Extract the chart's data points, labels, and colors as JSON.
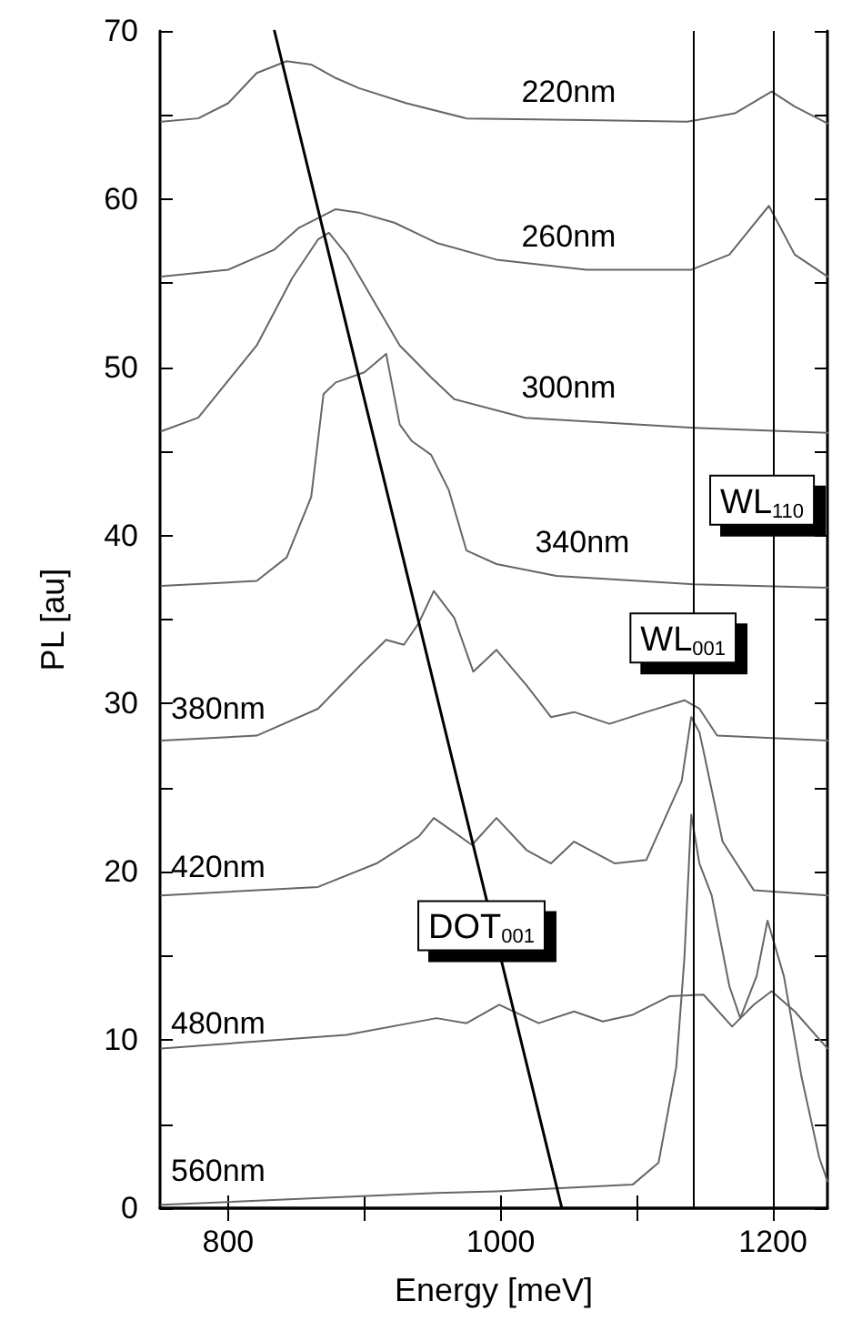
{
  "chart_data": {
    "type": "line",
    "xlabel": "Energy [meV]",
    "ylabel": "PL [au]",
    "xlim": [
      750,
      1240
    ],
    "xticks": [
      800,
      {
        "value": 900,
        "label": null
      },
      1000,
      {
        "value": 1100,
        "label": null
      },
      1200
    ],
    "ylim": [
      0,
      70
    ],
    "yticks": [
      0,
      {
        "value": 5,
        "label": null
      },
      10,
      {
        "value": 15,
        "label": null
      },
      20,
      {
        "value": 25,
        "label": null
      },
      30,
      {
        "value": 35,
        "label": null
      },
      40,
      {
        "value": 45,
        "label": null
      },
      50,
      {
        "value": 55,
        "label": null
      },
      60,
      {
        "value": 65,
        "label": null
      },
      70
    ],
    "grid": false,
    "legend": false,
    "marker": "none",
    "line_style": "solid",
    "series": [
      {
        "name": "220nm",
        "color": "#666666",
        "x": [
          751,
          778,
          800,
          821,
          843,
          861,
          879,
          896,
          931,
          975,
          1063,
          1137,
          1172,
          1199,
          1216,
          1240
        ],
        "values": [
          64.6,
          64.8,
          65.7,
          67.5,
          68.2,
          68.0,
          67.2,
          66.6,
          65.7,
          64.8,
          64.7,
          64.6,
          65.1,
          66.4,
          65.5,
          64.5
        ]
      },
      {
        "name": "260nm",
        "color": "#666666",
        "x": [
          751,
          800,
          834,
          852,
          879,
          896,
          922,
          953,
          997,
          1063,
          1140,
          1168,
          1197,
          1216,
          1240
        ],
        "values": [
          55.4,
          55.8,
          57.0,
          58.3,
          59.4,
          59.2,
          58.6,
          57.4,
          56.4,
          55.8,
          55.8,
          56.7,
          59.6,
          56.7,
          55.4
        ]
      },
      {
        "name": "300nm",
        "color": "#666666",
        "x": [
          751,
          778,
          821,
          847,
          866,
          874,
          887,
          905,
          926,
          949,
          966,
          1018,
          1142,
          1240
        ],
        "values": [
          46.2,
          47.0,
          51.3,
          55.3,
          57.6,
          58.0,
          56.7,
          54.2,
          51.3,
          49.4,
          48.1,
          47.0,
          46.4,
          46.1
        ]
      },
      {
        "name": "340nm",
        "color": "#666666",
        "x": [
          751,
          821,
          843,
          861,
          870,
          879,
          900,
          916,
          926,
          935,
          949,
          962,
          975,
          997,
          1041,
          1142,
          1240
        ],
        "values": [
          37.0,
          37.3,
          38.7,
          42.3,
          48.4,
          49.1,
          49.7,
          50.8,
          46.6,
          45.6,
          44.8,
          42.7,
          39.1,
          38.3,
          37.6,
          37.1,
          36.9
        ]
      },
      {
        "name": "380nm",
        "color": "#666666",
        "x": [
          751,
          821,
          866,
          896,
          916,
          929,
          940,
          951,
          966,
          980,
          997,
          1019,
          1037,
          1054,
          1080,
          1107,
          1135,
          1146,
          1159,
          1240
        ],
        "values": [
          27.8,
          28.1,
          29.7,
          32.2,
          33.8,
          33.5,
          34.8,
          36.7,
          35.1,
          31.9,
          33.2,
          31.1,
          29.2,
          29.5,
          28.8,
          29.5,
          30.2,
          29.7,
          28.1,
          27.8
        ]
      },
      {
        "name": "420nm",
        "color": "#666666",
        "x": [
          751,
          866,
          909,
          940,
          951,
          979,
          997,
          1019,
          1037,
          1054,
          1084,
          1107,
          1133,
          1140,
          1146,
          1150,
          1163,
          1186,
          1240
        ],
        "values": [
          18.6,
          19.1,
          20.5,
          22.1,
          23.2,
          21.6,
          23.2,
          21.3,
          20.5,
          21.8,
          20.5,
          20.7,
          25.4,
          29.2,
          28.3,
          26.8,
          21.8,
          18.9,
          18.6
        ]
      },
      {
        "name": "480nm",
        "color": "#666666",
        "x": [
          751,
          887,
          953,
          975,
          999,
          1028,
          1054,
          1075,
          1097,
          1124,
          1149,
          1170,
          1186,
          1199,
          1216,
          1240
        ],
        "values": [
          9.5,
          10.3,
          11.3,
          11.0,
          12.1,
          11.0,
          11.7,
          11.1,
          11.5,
          12.6,
          12.7,
          10.8,
          12.1,
          12.9,
          11.7,
          9.5
        ]
      },
      {
        "name": "560nm",
        "color": "#666666",
        "x": [
          751,
          953,
          997,
          1097,
          1116,
          1129,
          1135,
          1140,
          1146,
          1155,
          1168,
          1176,
          1188,
          1196,
          1208,
          1221,
          1234,
          1240
        ],
        "values": [
          0.2,
          0.9,
          1.0,
          1.4,
          2.7,
          8.4,
          14.9,
          23.4,
          20.5,
          18.6,
          13.2,
          11.3,
          13.8,
          17.1,
          13.8,
          7.8,
          3.0,
          1.6
        ]
      },
      {
        "type": "line",
        "color": "#000000",
        "x": [
          834,
          1045
        ],
        "values": [
          70,
          0
        ]
      }
    ],
    "ref_lines": [
      {
        "axis": "x",
        "value": 1142,
        "color": "#000000"
      },
      {
        "axis": "x",
        "value": 1200,
        "color": "#000000"
      }
    ],
    "annotations": [
      {
        "text": "WL$_{110}$",
        "x": 1200,
        "y": 42.1
      },
      {
        "text": "WL$_{001}$",
        "x": 1142,
        "y": 33.9
      },
      {
        "text": "DOT$_{001}$",
        "x": 994,
        "y": 16.8
      }
    ]
  }
}
